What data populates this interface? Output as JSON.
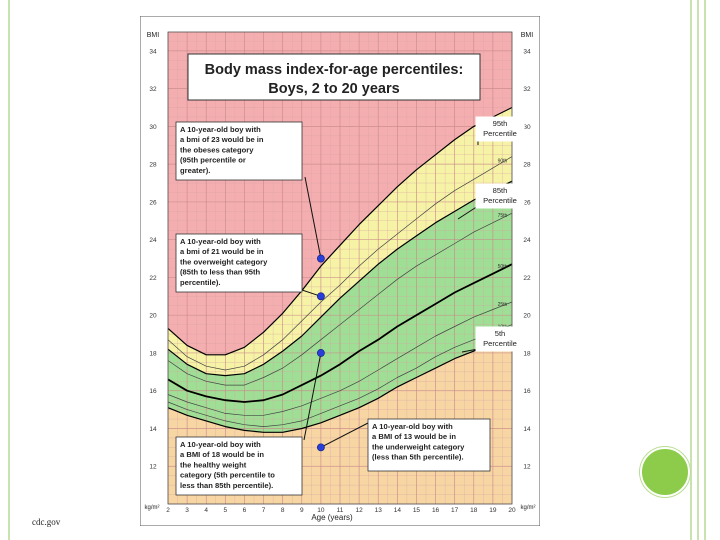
{
  "slide": {
    "source_caption": "cdc.gov",
    "accent_color": "#8dcc4b",
    "frame_color": "#c9e3b0"
  },
  "chart_data": {
    "type": "line",
    "title": "Body mass index-for-age percentiles:",
    "subtitle": "Boys, 2 to 20 years",
    "xlabel": "Age (years)",
    "ylabel_left": "BMI",
    "ylabel_right": "BMI",
    "unit_label": "kg/m²",
    "xlim": [
      2,
      20
    ],
    "ylim": [
      10,
      35
    ],
    "grid": true,
    "x_ticks": [
      "2",
      "3",
      "4",
      "5",
      "6",
      "7",
      "8",
      "9",
      "10",
      "11",
      "12",
      "13",
      "14",
      "15",
      "16",
      "17",
      "18",
      "19",
      "20"
    ],
    "y_ticks": [
      "12",
      "14",
      "16",
      "18",
      "20",
      "22",
      "24",
      "26",
      "28",
      "30",
      "32",
      "34"
    ],
    "zone_colors": {
      "obese": "#f4aeb0",
      "overweight": "#f6f3a6",
      "healthy": "#9fdf95",
      "underweight": "#f7d6a4"
    },
    "x": [
      2,
      3,
      4,
      5,
      6,
      7,
      8,
      9,
      10,
      11,
      12,
      13,
      14,
      15,
      16,
      17,
      18,
      19,
      20
    ],
    "series": [
      {
        "name": "95th",
        "color": "#000000",
        "width": 1.2,
        "values": [
          19.3,
          18.4,
          17.9,
          17.9,
          18.3,
          19.1,
          20.1,
          21.3,
          22.6,
          23.7,
          24.8,
          25.8,
          26.8,
          27.7,
          28.5,
          29.3,
          30.0,
          30.5,
          31.0
        ]
      },
      {
        "name": "90th",
        "color": "#444444",
        "width": 0.7,
        "values": [
          18.7,
          17.8,
          17.3,
          17.1,
          17.3,
          17.9,
          18.7,
          19.7,
          20.7,
          21.6,
          22.6,
          23.5,
          24.3,
          25.1,
          25.9,
          26.6,
          27.2,
          27.8,
          28.4
        ]
      },
      {
        "name": "85th",
        "color": "#000000",
        "width": 1.2,
        "values": [
          18.2,
          17.4,
          16.9,
          16.8,
          16.9,
          17.4,
          18.1,
          18.9,
          19.9,
          20.9,
          21.8,
          22.7,
          23.5,
          24.2,
          24.9,
          25.5,
          26.1,
          26.6,
          27.1
        ]
      },
      {
        "name": "75th",
        "color": "#444444",
        "width": 0.7,
        "values": [
          17.6,
          16.9,
          16.5,
          16.3,
          16.3,
          16.7,
          17.2,
          17.9,
          18.7,
          19.5,
          20.3,
          21.1,
          21.9,
          22.6,
          23.2,
          23.8,
          24.4,
          24.9,
          25.4
        ]
      },
      {
        "name": "50th",
        "color": "#000000",
        "width": 1.8,
        "values": [
          16.6,
          16.0,
          15.7,
          15.5,
          15.4,
          15.5,
          15.8,
          16.3,
          16.8,
          17.4,
          18.1,
          18.7,
          19.4,
          20.0,
          20.6,
          21.2,
          21.7,
          22.2,
          22.7
        ]
      },
      {
        "name": "25th",
        "color": "#444444",
        "width": 0.7,
        "values": [
          15.8,
          15.4,
          15.1,
          14.8,
          14.7,
          14.7,
          14.9,
          15.2,
          15.6,
          16.0,
          16.5,
          17.1,
          17.7,
          18.3,
          18.9,
          19.4,
          19.9,
          20.3,
          20.7
        ]
      },
      {
        "name": "10th",
        "color": "#444444",
        "width": 0.7,
        "values": [
          15.4,
          15.0,
          14.7,
          14.4,
          14.2,
          14.1,
          14.2,
          14.4,
          14.8,
          15.2,
          15.6,
          16.1,
          16.7,
          17.2,
          17.8,
          18.3,
          18.7,
          19.1,
          19.5
        ]
      },
      {
        "name": "5th",
        "color": "#000000",
        "width": 1.2,
        "values": [
          15.1,
          14.7,
          14.4,
          14.1,
          13.9,
          13.8,
          13.8,
          14.0,
          14.3,
          14.7,
          15.1,
          15.6,
          16.2,
          16.7,
          17.2,
          17.7,
          18.1,
          18.5,
          18.9
        ]
      }
    ],
    "inline_series_labels": [
      {
        "text": "90th",
        "x": 19.5,
        "y": 28.1
      },
      {
        "text": "75th",
        "x": 19.5,
        "y": 25.2
      },
      {
        "text": "50th",
        "x": 19.5,
        "y": 22.5
      },
      {
        "text": "25th",
        "x": 19.5,
        "y": 20.5
      },
      {
        "text": "10th",
        "x": 19.5,
        "y": 19.3
      }
    ],
    "markers": [
      {
        "x": 10,
        "y": 23,
        "color": "#2a3ed8"
      },
      {
        "x": 10,
        "y": 21,
        "color": "#2a3ed8"
      },
      {
        "x": 10,
        "y": 18,
        "color": "#2a3ed8"
      },
      {
        "x": 10,
        "y": 13,
        "color": "#2a3ed8"
      }
    ],
    "annotations": [
      {
        "lines": [
          "A 10-year-old boy with",
          "a bmi of 23 would be in",
          "the obeses category",
          "(95th percentile or",
          "greater)."
        ]
      },
      {
        "lines": [
          "A 10-year-old boy with",
          "a bmi of 21 would be in",
          "the overweight category",
          "(85th to less than 95th",
          "percentile)."
        ]
      },
      {
        "lines": [
          "A 10-year-old boy with",
          "a BMI of 18 would be in",
          "the healthy weight",
          "category (5th percentile to",
          "less than 85th percentile)."
        ]
      },
      {
        "lines": [
          "A 10-year-old boy with",
          "a BMI of 13 would be in",
          "the underweight category",
          "(less than 5th percentile)."
        ]
      }
    ],
    "percentile_callouts": [
      {
        "lines": [
          "95th",
          "Percentile"
        ]
      },
      {
        "lines": [
          "85th",
          "Percentile"
        ]
      },
      {
        "lines": [
          "5th",
          "Percentile"
        ]
      }
    ]
  }
}
